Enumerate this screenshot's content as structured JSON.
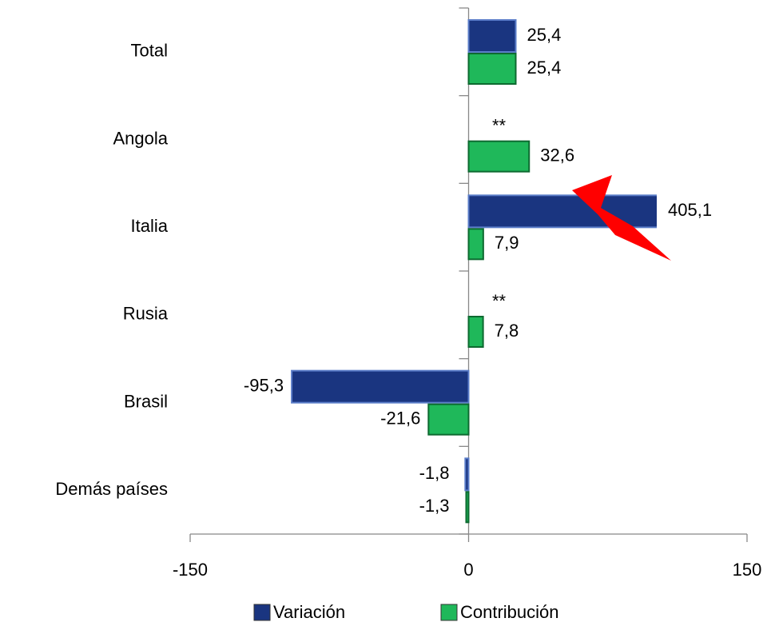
{
  "chart_data": {
    "type": "bar",
    "orientation": "horizontal",
    "categories": [
      "Total",
      "Angola",
      "Italia",
      "Rusia",
      "Brasil",
      "Demás países"
    ],
    "series": [
      {
        "name": "Variación",
        "color": "#1a3580",
        "values": [
          25.4,
          null,
          405.1,
          null,
          -95.3,
          -1.8
        ],
        "value_labels": [
          "25,4",
          "**",
          "405,1",
          "**",
          "-95,3",
          "-1,8"
        ]
      },
      {
        "name": "Contribución",
        "color": "#1fb85a",
        "values": [
          25.4,
          32.6,
          7.9,
          7.8,
          -21.6,
          -1.3
        ],
        "value_labels": [
          "25,4",
          "32,6",
          "7,9",
          "7,8",
          "-21,6",
          "-1,3"
        ]
      }
    ],
    "xlim": [
      -150,
      150
    ],
    "xticks": [
      -150,
      0,
      150
    ]
  }
}
